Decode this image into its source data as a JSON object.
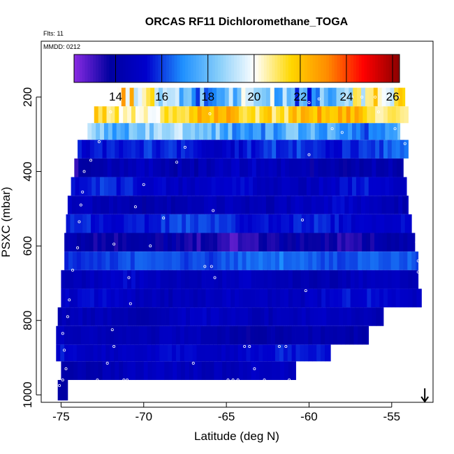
{
  "chart_data": {
    "type": "heatmap",
    "title": "ORCAS RF11 Dichloromethane_TOGA",
    "annotations": {
      "flights": "Flts: 11",
      "date": "MMDD: 0212"
    },
    "xlabel": "Latitude (deg N)",
    "ylabel": "PSXC (mbar)",
    "xlim": [
      -76.2,
      -52.5
    ],
    "ylim": [
      1020,
      50
    ],
    "x_ticks": [
      -75,
      -70,
      -65,
      -60,
      -55
    ],
    "x_tick_labels": [
      "-75",
      "-70",
      "-65",
      "-60",
      "-55"
    ],
    "y_ticks": [
      200,
      400,
      600,
      800,
      1000
    ],
    "y_tick_labels": [
      "200",
      "400",
      "600",
      "800",
      "1000"
    ],
    "colorbar": {
      "range": [
        12.2,
        26.3
      ],
      "ticks": [
        14,
        16,
        18,
        20,
        22,
        24,
        26
      ],
      "tick_labels": [
        "14",
        "16",
        "18",
        "20",
        "22",
        "24",
        "26"
      ],
      "colors": [
        "#8a2be2",
        "#0000a0",
        "#0000cd",
        "#1e90ff",
        "#87cefa",
        "#ffffff",
        "#ffd700",
        "#ff8c00",
        "#ff0000",
        "#8b0000"
      ]
    },
    "arrow_marker_lat": -53.0,
    "bands": [
      {
        "p_top": 175,
        "p_bottom": 225,
        "lat_start": -71.6,
        "lat_end": -54.2,
        "base": 19.0,
        "amp": 3.2,
        "seed": 1
      },
      {
        "p_top": 225,
        "p_bottom": 270,
        "lat_start": -73.0,
        "lat_end": -54.0,
        "base": 21.4,
        "amp": 1.5,
        "seed": 2
      },
      {
        "p_top": 270,
        "p_bottom": 315,
        "lat_start": -73.4,
        "lat_end": -54.5,
        "base": 17.8,
        "amp": 1.6,
        "seed": 3
      },
      {
        "p_top": 315,
        "p_bottom": 365,
        "lat_start": -74.0,
        "lat_end": -54.0,
        "base": 15.7,
        "amp": 0.8,
        "seed": 4
      },
      {
        "p_top": 365,
        "p_bottom": 415,
        "lat_start": -74.2,
        "lat_end": -54.3,
        "base": 14.3,
        "amp": 0.9,
        "seed": 5
      },
      {
        "p_top": 415,
        "p_bottom": 465,
        "lat_start": -74.4,
        "lat_end": -54.1,
        "base": 15.2,
        "amp": 0.7,
        "seed": 6
      },
      {
        "p_top": 465,
        "p_bottom": 515,
        "lat_start": -74.6,
        "lat_end": -54.0,
        "base": 14.6,
        "amp": 0.7,
        "seed": 7
      },
      {
        "p_top": 515,
        "p_bottom": 565,
        "lat_start": -74.7,
        "lat_end": -53.8,
        "base": 15.6,
        "amp": 0.6,
        "seed": 8
      },
      {
        "p_top": 565,
        "p_bottom": 615,
        "lat_start": -74.8,
        "lat_end": -53.6,
        "base": 13.8,
        "amp": 0.8,
        "seed": 9
      },
      {
        "p_top": 615,
        "p_bottom": 665,
        "lat_start": -74.8,
        "lat_end": -53.4,
        "base": 16.2,
        "amp": 0.5,
        "seed": 10
      },
      {
        "p_top": 665,
        "p_bottom": 715,
        "lat_start": -75.0,
        "lat_end": -53.4,
        "base": 14.7,
        "amp": 0.6,
        "seed": 11
      },
      {
        "p_top": 715,
        "p_bottom": 765,
        "lat_start": -75.0,
        "lat_end": -53.2,
        "base": 15.0,
        "amp": 0.6,
        "seed": 12
      },
      {
        "p_top": 765,
        "p_bottom": 815,
        "lat_start": -75.2,
        "lat_end": -55.5,
        "base": 14.6,
        "amp": 0.6,
        "seed": 13
      },
      {
        "p_top": 815,
        "p_bottom": 865,
        "lat_start": -75.3,
        "lat_end": -56.4,
        "base": 14.4,
        "amp": 0.6,
        "seed": 14
      },
      {
        "p_top": 865,
        "p_bottom": 910,
        "lat_start": -75.3,
        "lat_end": -58.7,
        "base": 15.3,
        "amp": 0.5,
        "seed": 15
      },
      {
        "p_top": 910,
        "p_bottom": 960,
        "lat_start": -75.0,
        "lat_end": -60.8,
        "base": 14.6,
        "amp": 0.6,
        "seed": 16
      },
      {
        "p_top": 960,
        "p_bottom": 1015,
        "lat_start": -75.2,
        "lat_end": -74.6,
        "base": 13.9,
        "amp": 0.2,
        "seed": 17
      }
    ],
    "points": [
      {
        "lat": -75.1,
        "p": 975
      },
      {
        "lat": -74.9,
        "p": 960
      },
      {
        "lat": -74.7,
        "p": 930
      },
      {
        "lat": -74.8,
        "p": 880
      },
      {
        "lat": -74.9,
        "p": 835
      },
      {
        "lat": -74.6,
        "p": 790
      },
      {
        "lat": -74.5,
        "p": 745
      },
      {
        "lat": -74.3,
        "p": 665
      },
      {
        "lat": -74.0,
        "p": 605
      },
      {
        "lat": -73.9,
        "p": 535
      },
      {
        "lat": -73.8,
        "p": 490
      },
      {
        "lat": -73.7,
        "p": 455
      },
      {
        "lat": -73.6,
        "p": 400
      },
      {
        "lat": -73.2,
        "p": 370
      },
      {
        "lat": -72.7,
        "p": 320
      },
      {
        "lat": -72.0,
        "p": 240
      },
      {
        "lat": -71.2,
        "p": 960
      },
      {
        "lat": -71.0,
        "p": 960
      },
      {
        "lat": -72.8,
        "p": 960
      },
      {
        "lat": -72.2,
        "p": 915
      },
      {
        "lat": -71.8,
        "p": 870
      },
      {
        "lat": -71.9,
        "p": 825
      },
      {
        "lat": -70.8,
        "p": 755
      },
      {
        "lat": -70.9,
        "p": 685
      },
      {
        "lat": -71.8,
        "p": 595
      },
      {
        "lat": -70.5,
        "p": 495
      },
      {
        "lat": -70.0,
        "p": 435
      },
      {
        "lat": -68.0,
        "p": 375
      },
      {
        "lat": -67.5,
        "p": 335
      },
      {
        "lat": -66.0,
        "p": 245
      },
      {
        "lat": -67.0,
        "p": 915
      },
      {
        "lat": -66.3,
        "p": 655
      },
      {
        "lat": -65.9,
        "p": 655
      },
      {
        "lat": -65.7,
        "p": 685
      },
      {
        "lat": -65.8,
        "p": 505
      },
      {
        "lat": -64.9,
        "p": 960
      },
      {
        "lat": -64.6,
        "p": 960
      },
      {
        "lat": -64.3,
        "p": 960
      },
      {
        "lat": -63.9,
        "p": 870
      },
      {
        "lat": -63.6,
        "p": 870
      },
      {
        "lat": -63.3,
        "p": 930
      },
      {
        "lat": -62.7,
        "p": 960
      },
      {
        "lat": -61.8,
        "p": 870
      },
      {
        "lat": -61.4,
        "p": 870
      },
      {
        "lat": -61.2,
        "p": 960
      },
      {
        "lat": -60.6,
        "p": 960
      },
      {
        "lat": -60.2,
        "p": 720
      },
      {
        "lat": -60.4,
        "p": 530
      },
      {
        "lat": -60.0,
        "p": 355
      },
      {
        "lat": -57.9,
        "p": 200
      },
      {
        "lat": -57.4,
        "p": 200
      },
      {
        "lat": -56.8,
        "p": 200
      },
      {
        "lat": -56.0,
        "p": 200
      },
      {
        "lat": -55.2,
        "p": 200
      },
      {
        "lat": -54.6,
        "p": 200
      },
      {
        "lat": -55.8,
        "p": 240
      },
      {
        "lat": -54.8,
        "p": 285
      },
      {
        "lat": -54.2,
        "p": 325
      },
      {
        "lat": -54.0,
        "p": 385
      },
      {
        "lat": -53.9,
        "p": 430
      },
      {
        "lat": -53.8,
        "p": 480
      },
      {
        "lat": -53.6,
        "p": 540
      },
      {
        "lat": -53.5,
        "p": 590
      },
      {
        "lat": -53.4,
        "p": 670
      },
      {
        "lat": -53.2,
        "p": 705
      },
      {
        "lat": -53.4,
        "p": 640
      },
      {
        "lat": -59.4,
        "p": 205
      },
      {
        "lat": -60.0,
        "p": 215
      },
      {
        "lat": -58.6,
        "p": 285
      },
      {
        "lat": -58.0,
        "p": 295
      },
      {
        "lat": -68.8,
        "p": 525
      },
      {
        "lat": -69.6,
        "p": 600
      }
    ]
  }
}
